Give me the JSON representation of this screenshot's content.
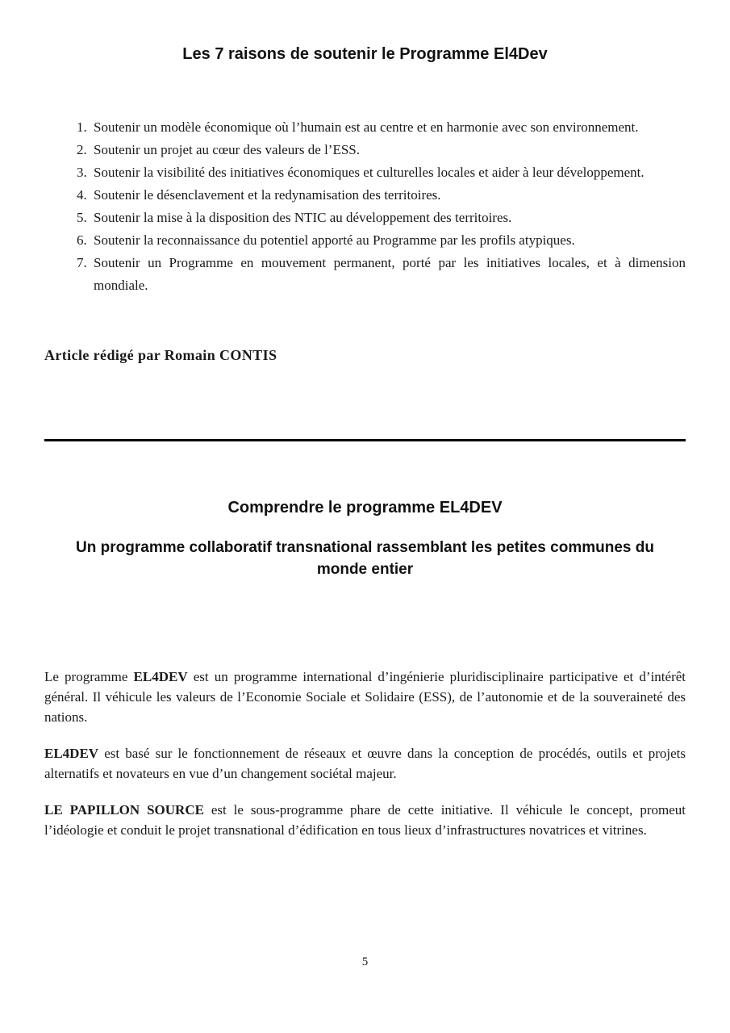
{
  "colors": {
    "background": "#ffffff",
    "text": "#1a1a1a"
  },
  "article_top": {
    "title": "Les 7 raisons de soutenir le Programme El4Dev",
    "reasons": [
      "Soutenir un modèle économique où l’humain est au centre et en harmonie avec son environnement.",
      "Soutenir un projet au cœur des valeurs de l’ESS.",
      "Soutenir la visibilité des initiatives économiques et culturelles locales et aider à leur développement.",
      "Soutenir le désenclavement et la redynamisation des territoires.",
      "Soutenir la mise à la disposition des NTIC au développement des territoires.",
      "Soutenir la reconnaissance du potentiel apporté au Programme par les profils atypiques.",
      "Soutenir un Programme en mouvement permanent, porté par les initiatives locales, et à dimension mondiale."
    ],
    "byline": "Article rédigé par Romain CONTIS"
  },
  "article_bottom": {
    "heading": "Comprendre le programme EL4DEV",
    "subheading": "Un programme collaboratif transnational rassemblant les petites communes du monde entier",
    "paragraphs": [
      {
        "segments": [
          {
            "text": "Le programme "
          },
          {
            "text": "EL4DEV",
            "bold": true
          },
          {
            "text": " est un programme international d’ingénierie pluridisciplinaire participative et d’intérêt général. Il véhicule les valeurs de l’Economie Sociale et Solidaire (ESS), de l’autonomie et de la souveraineté des nations."
          }
        ]
      },
      {
        "segments": [
          {
            "text": "EL4DEV",
            "bold": true
          },
          {
            "text": " est basé sur le fonctionnement de réseaux et œuvre dans la conception de procédés, outils et projets alternatifs et novateurs en vue d’un changement sociétal majeur."
          }
        ]
      },
      {
        "segments": [
          {
            "text": "LE PAPILLON SOURCE",
            "bold": true
          },
          {
            "text": " est le sous-programme phare de cette initiative. Il véhicule le concept, promeut l’idéologie et conduit le projet transnational d’édification en tous lieux d’infrastructures novatrices et vitrines."
          }
        ]
      }
    ]
  },
  "footer": {
    "page_number": "5"
  }
}
